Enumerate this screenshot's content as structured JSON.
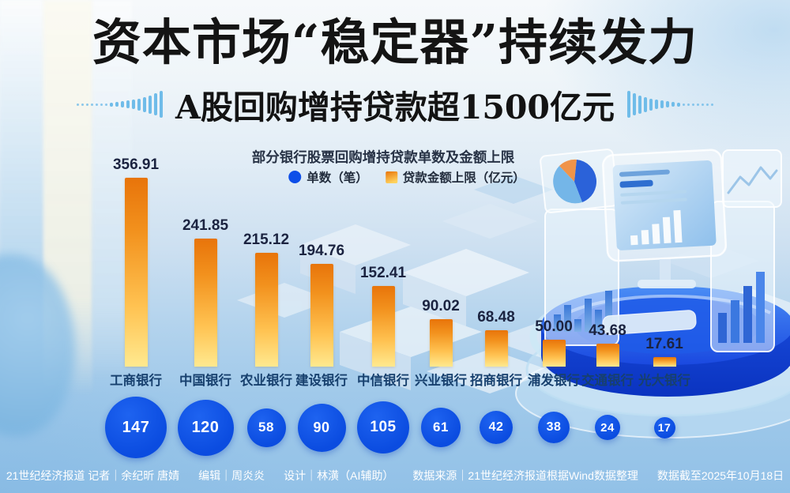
{
  "title": "资本市场“稳定器”持续发力",
  "subtitle": "A股回购增持贷款超1500亿元",
  "chart": {
    "title": "部分银行股票回购增持贷款单数及金额上限",
    "legend": [
      {
        "label": "单数（笔）",
        "swatch": "circle",
        "color": "#0d4ee8"
      },
      {
        "label": "贷款金额上限（亿元）",
        "swatch": "square",
        "color": "#f2911d"
      }
    ]
  },
  "chart_data": {
    "type": "bar",
    "title": "部分银行股票回购增持贷款单数及金额上限",
    "categories": [
      "工商银行",
      "中国银行",
      "农业银行",
      "建设银行",
      "中信银行",
      "兴业银行",
      "招商银行",
      "浦发银行",
      "交通银行",
      "光大银行"
    ],
    "series": [
      {
        "name": "贷款金额上限（亿元）",
        "values": [
          356.91,
          241.85,
          215.12,
          194.76,
          152.41,
          90.02,
          68.48,
          50.0,
          43.68,
          17.61
        ],
        "values_display": [
          "356.91",
          "241.85",
          "215.12",
          "194.76",
          "152.41",
          "90.02",
          "68.48",
          "50.00",
          "43.68",
          "17.61"
        ]
      },
      {
        "name": "单数（笔）",
        "values": [
          147,
          120,
          58,
          90,
          105,
          61,
          42,
          38,
          24,
          17
        ],
        "values_display": [
          "147",
          "120",
          "58",
          "90",
          "105",
          "61",
          "42",
          "38",
          "24",
          "17"
        ]
      }
    ],
    "ylim": [
      0,
      380
    ],
    "grid": false,
    "legend_position": "top",
    "value_labels": true
  },
  "footer": {
    "segments": [
      "21世纪经济报道  记者｜余纪昕 唐婧",
      "编辑｜周炎炎",
      "设计｜林潢（AI辅助）",
      "数据来源｜21世纪经济报道根据Wind数据整理",
      "数据截至2025年10月18日"
    ]
  },
  "colors": {
    "title_color": "#141414",
    "bar_top": "#e8740a",
    "bar_bottom": "#ffe98f",
    "circle_blue": "#0b4ce0",
    "legend_blue": "#0d4ee8",
    "value_navy": "#1b2340",
    "bank_navy": "#17406e",
    "wave_blue": "#6fbce9",
    "footer_text": "#ffffff"
  }
}
